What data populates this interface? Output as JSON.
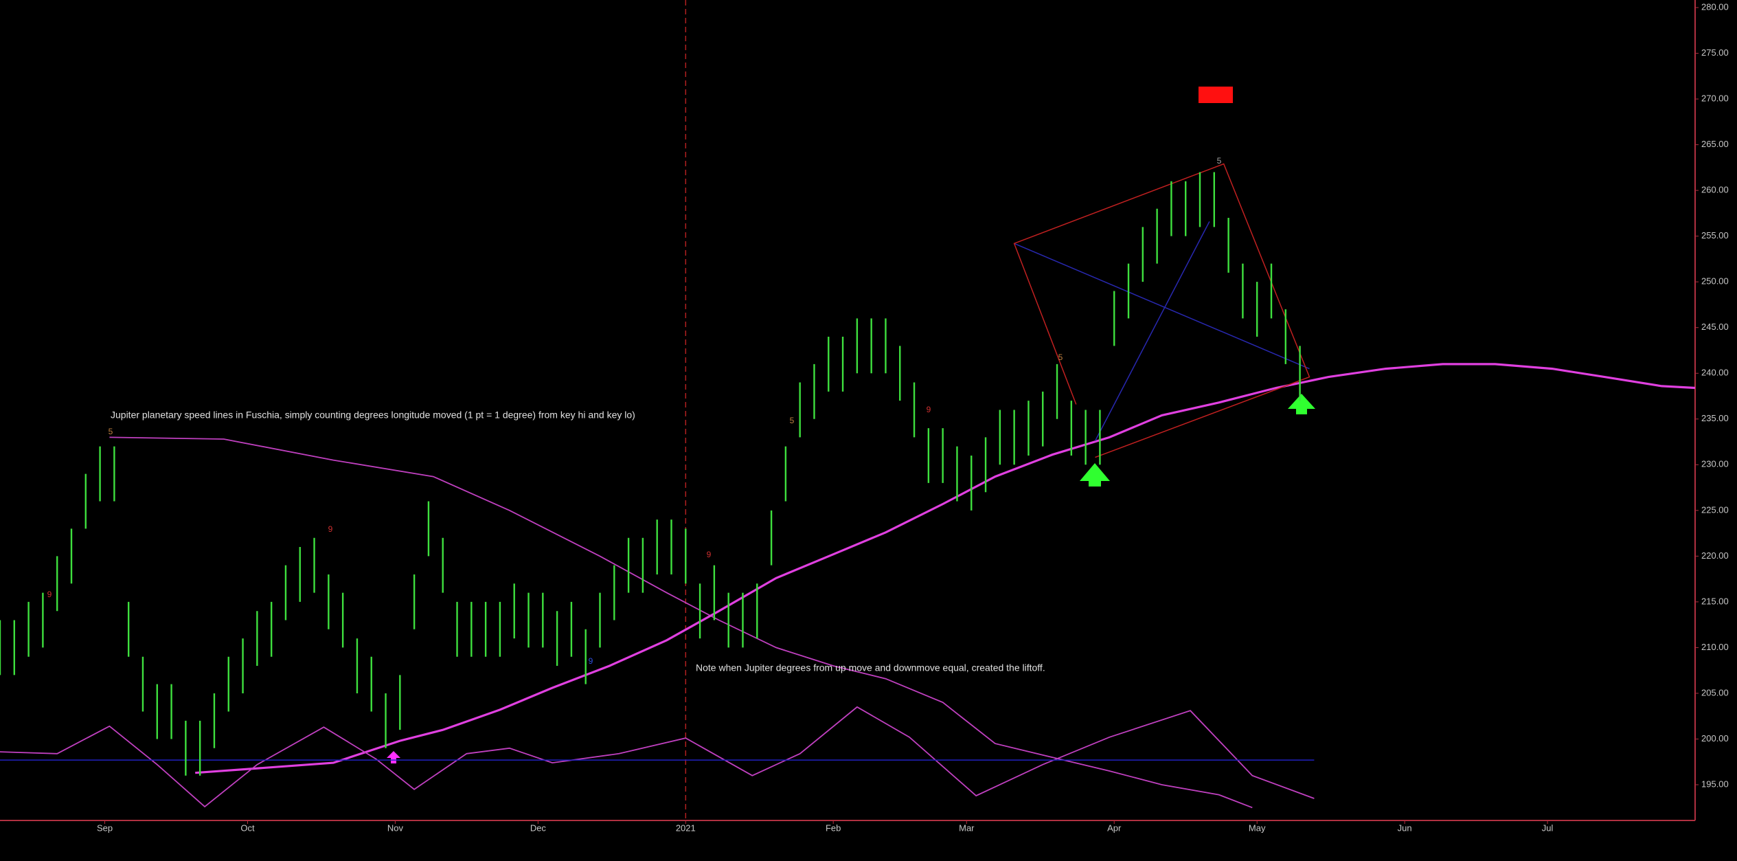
{
  "chart_data": {
    "type": "ohlc",
    "color": "#3ee03e",
    "background": "#000000",
    "x": [
      9,
      12,
      15,
      18,
      21,
      24,
      27,
      30,
      33,
      36,
      39,
      42,
      45,
      48,
      51,
      54,
      57,
      60,
      63,
      66,
      69,
      72,
      75,
      78,
      81,
      84,
      87,
      90,
      93,
      96,
      99,
      102,
      105,
      108,
      111,
      114,
      117,
      120,
      123,
      126,
      129,
      132,
      135,
      138,
      141,
      144,
      147,
      150,
      153,
      156,
      159,
      162,
      165,
      168,
      171,
      174,
      177,
      180,
      183,
      186,
      189,
      192,
      195,
      198,
      201,
      204,
      207,
      210,
      213,
      216,
      219,
      222,
      225,
      228,
      231,
      234,
      237,
      240,
      243,
      246,
      249,
      252,
      255,
      258,
      261,
      264,
      267,
      270,
      273,
      276,
      279,
      282
    ],
    "high": [
      213,
      213,
      215,
      216,
      220,
      223,
      229,
      232,
      232,
      215,
      209,
      206,
      206,
      202,
      202,
      205,
      209,
      211,
      214,
      215,
      219,
      221,
      222,
      218,
      216,
      211,
      209,
      205,
      207,
      218,
      226,
      222,
      215,
      215,
      215,
      215,
      217,
      216,
      216,
      214,
      215,
      212,
      216,
      219,
      222,
      222,
      224,
      224,
      223,
      217,
      219,
      216,
      216,
      217,
      225,
      232,
      239,
      241,
      244,
      244,
      246,
      246,
      246,
      243,
      239,
      234,
      234,
      232,
      231,
      233,
      236,
      236,
      237,
      238,
      241,
      237,
      236,
      236,
      249,
      252,
      256,
      258,
      261,
      261,
      262,
      262,
      257,
      252,
      250,
      252,
      247,
      243
    ],
    "low": [
      207,
      207,
      209,
      210,
      214,
      217,
      223,
      226,
      226,
      209,
      203,
      200,
      200,
      196,
      196,
      199,
      203,
      205,
      208,
      209,
      213,
      215,
      216,
      212,
      210,
      205,
      203,
      199,
      201,
      212,
      220,
      216,
      209,
      209,
      209,
      209,
      211,
      210,
      210,
      208,
      209,
      206,
      210,
      213,
      216,
      216,
      218,
      218,
      217,
      211,
      213,
      210,
      210,
      211,
      219,
      226,
      233,
      235,
      238,
      238,
      240,
      240,
      240,
      237,
      233,
      228,
      228,
      226,
      225,
      227,
      230,
      230,
      231,
      232,
      235,
      231,
      230,
      230,
      243,
      246,
      250,
      252,
      255,
      255,
      256,
      256,
      251,
      246,
      244,
      246,
      241,
      237
    ],
    "lines": [
      {
        "color": "#c040c0",
        "x": [
          32,
          56,
          79,
          100,
          116,
          135,
          149,
          160,
          172,
          184,
          195,
          207,
          218,
          230,
          242,
          253,
          265,
          272
        ],
        "values": [
          233,
          232.8,
          230.5,
          228.7,
          225,
          220,
          216,
          213,
          210,
          208,
          206.6,
          204,
          199.5,
          198,
          196.5,
          195,
          193.9,
          192.5
        ]
      },
      {
        "color": "#e040e0",
        "x": [
          50,
          79,
          93,
          102,
          114,
          125,
          137,
          149,
          160,
          172,
          184,
          195,
          207,
          218,
          230,
          242,
          253,
          265,
          277,
          288,
          300,
          312,
          323,
          335,
          346,
          358,
          365
        ],
        "values": [
          196.3,
          197.4,
          199.8,
          201,
          203.2,
          205.6,
          208,
          210.8,
          214,
          217.6,
          220.2,
          222.6,
          225.7,
          228.7,
          231.1,
          233,
          235.4,
          236.8,
          238.4,
          239.6,
          240.5,
          241,
          241,
          240.5,
          239.6,
          238.6,
          238.4
        ]
      },
      {
        "color": "#c040c0",
        "x": [
          9,
          21,
          32,
          42,
          52,
          63,
          77,
          88,
          96,
          107,
          116,
          125,
          139,
          153,
          167,
          177,
          189,
          200,
          214,
          228,
          242,
          259,
          272,
          285
        ],
        "values": [
          198.6,
          198.4,
          201.4,
          197.2,
          192.6,
          197.2,
          201.3,
          197.8,
          194.5,
          198.4,
          199,
          197.4,
          198.4,
          200.1,
          196,
          198.4,
          203.5,
          200.2,
          193.8,
          197.2,
          200.2,
          203.1,
          196,
          193.5
        ]
      },
      {
        "color": "#2020c0",
        "x": [
          9,
          285
        ],
        "values": [
          197.7,
          197.7
        ]
      },
      {
        "color": "#2828b0",
        "x": [
          222,
          284
        ],
        "values": [
          254.2,
          240.5
        ]
      },
      {
        "color": "#2828b0",
        "x": [
          239,
          263
        ],
        "values": [
          232.6,
          256.6
        ]
      },
      {
        "color": "#c02020",
        "x": [
          239,
          284,
          266,
          222,
          235
        ],
        "values": [
          230.8,
          239.6,
          262.9,
          254.2,
          236.6
        ]
      }
    ],
    "divider_x": 153,
    "divider_color": "#b02020",
    "notes": [
      "Jupiter planetary speed lines in Fuschia, simply counting degrees longitude moved (1 pt = 1 degree) from key hi and key lo)",
      "Note when Jupiter degrees from up  move and downmove equal, created the liftoff."
    ],
    "annotations": [
      {
        "text": "9",
        "color": "#d03030"
      },
      {
        "text": "5",
        "color": "#c08040"
      },
      {
        "text": "9",
        "color": "#d03030"
      },
      {
        "text": "9",
        "color": "#d03030"
      },
      {
        "text": "9",
        "color": "#d03030"
      },
      {
        "text": "5",
        "color": "#c08040"
      },
      {
        "text": "5",
        "color": "#c08040"
      },
      {
        "text": "5",
        "color": "#a0a0a0"
      },
      {
        "text": "9",
        "color": "#3050e0"
      }
    ],
    "xlim": [
      9,
      365
    ],
    "xticks": [
      {
        "value": 31,
        "label": "Sep"
      },
      {
        "value": 61,
        "label": "Oct"
      },
      {
        "value": 92,
        "label": "Nov"
      },
      {
        "value": 122,
        "label": "Dec"
      },
      {
        "value": 153,
        "label": "2021"
      },
      {
        "value": 184,
        "label": "Feb"
      },
      {
        "value": 212,
        "label": "Mar"
      },
      {
        "value": 243,
        "label": "Apr"
      },
      {
        "value": 273,
        "label": "May"
      },
      {
        "value": 304,
        "label": "Jun"
      },
      {
        "value": 334,
        "label": "Jul"
      }
    ],
    "ylim": [
      195,
      280
    ],
    "yticks": [
      {
        "value": 195,
        "label": "195.00"
      },
      {
        "value": 200,
        "label": "200.00"
      },
      {
        "value": 205,
        "label": "205.00"
      },
      {
        "value": 210,
        "label": "210.00"
      },
      {
        "value": 215,
        "label": "215.00"
      },
      {
        "value": 220,
        "label": "220.00"
      },
      {
        "value": 225,
        "label": "225.00"
      },
      {
        "value": 230,
        "label": "230.00"
      },
      {
        "value": 235,
        "label": "235.00"
      },
      {
        "value": 240,
        "label": "240.00"
      },
      {
        "value": 245,
        "label": "245.00"
      },
      {
        "value": 250,
        "label": "250.00"
      },
      {
        "value": 255,
        "label": "255.00"
      },
      {
        "value": 260,
        "label": "260.00"
      },
      {
        "value": 265,
        "label": "265.00"
      },
      {
        "value": 270,
        "label": "270.00"
      },
      {
        "value": 275,
        "label": "275.00"
      },
      {
        "value": 280,
        "label": "280.00"
      }
    ]
  }
}
